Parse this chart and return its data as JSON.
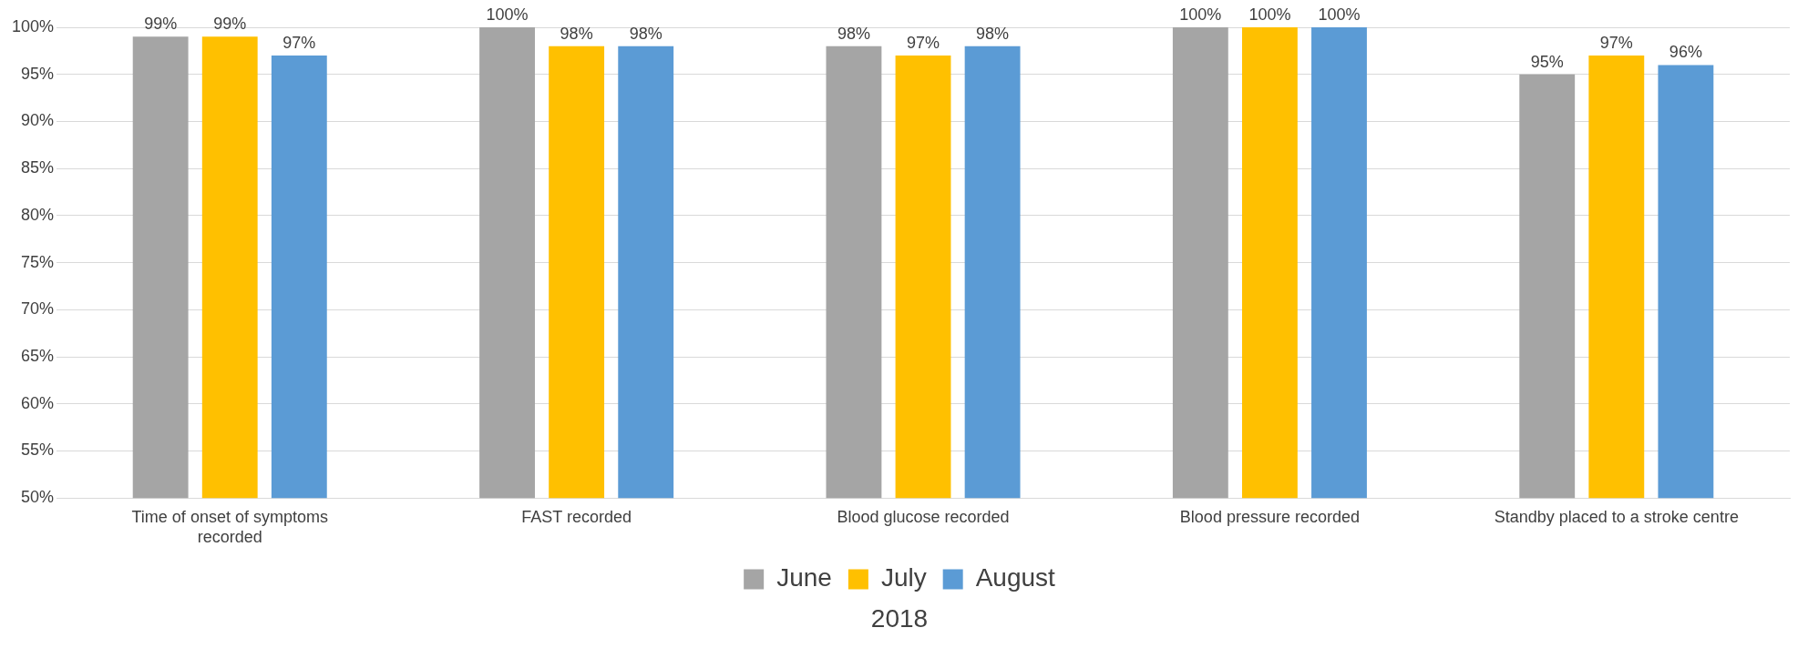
{
  "chart_data": {
    "type": "bar",
    "xlabel": "2018",
    "categories": [
      "Time of onset of symptoms recorded",
      "FAST recorded",
      "Blood glucose recorded",
      "Blood pressure recorded",
      "Standby placed to a stroke centre"
    ],
    "series": [
      {
        "name": "June",
        "color": "#a5a5a5",
        "values": [
          99,
          100,
          98,
          100,
          95
        ],
        "value_labels": [
          "99%",
          "100%",
          "98%",
          "100%",
          "95%"
        ]
      },
      {
        "name": "July",
        "color": "#ffc000",
        "values": [
          99,
          98,
          97,
          100,
          97
        ],
        "value_labels": [
          "99%",
          "98%",
          "97%",
          "100%",
          "97%"
        ]
      },
      {
        "name": "August",
        "color": "#5b9bd5",
        "values": [
          97,
          98,
          98,
          100,
          96
        ],
        "value_labels": [
          "97%",
          "98%",
          "98%",
          "100%",
          "96%"
        ]
      }
    ],
    "ylim": [
      50,
      100
    ],
    "yticks": [
      {
        "value": 50,
        "label": "50%"
      },
      {
        "value": 55,
        "label": "55%"
      },
      {
        "value": 60,
        "label": "60%"
      },
      {
        "value": 65,
        "label": "65%"
      },
      {
        "value": 70,
        "label": "70%"
      },
      {
        "value": 75,
        "label": "75%"
      },
      {
        "value": 80,
        "label": "80%"
      },
      {
        "value": 85,
        "label": "85%"
      },
      {
        "value": 90,
        "label": "90%"
      },
      {
        "value": 95,
        "label": "95%"
      },
      {
        "value": 100,
        "label": "100%"
      }
    ],
    "grid": "y",
    "legend": "bottom"
  }
}
